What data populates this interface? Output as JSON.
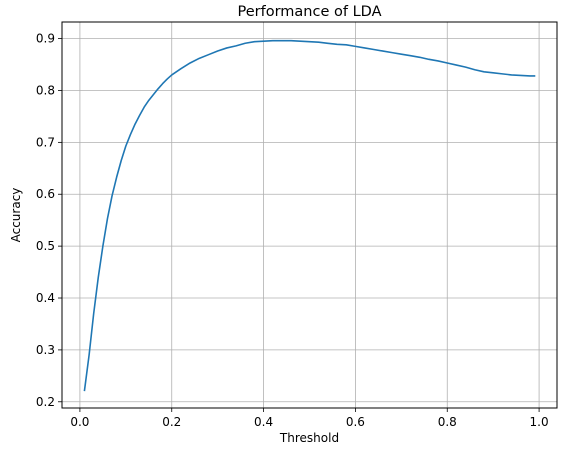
{
  "chart_data": {
    "type": "line",
    "title": "Performance of LDA",
    "xlabel": "Threshold",
    "ylabel": "Accuracy",
    "xlim": [
      -0.039,
      1.039
    ],
    "ylim": [
      0.188,
      0.932
    ],
    "xticks": [
      0.0,
      0.2,
      0.4,
      0.6,
      0.8,
      1.0
    ],
    "xtick_labels": [
      "0.0",
      "0.2",
      "0.4",
      "0.6",
      "0.8",
      "1.0"
    ],
    "yticks": [
      0.2,
      0.3,
      0.4,
      0.5,
      0.6,
      0.7,
      0.8,
      0.9
    ],
    "ytick_labels": [
      "0.2",
      "0.3",
      "0.4",
      "0.5",
      "0.6",
      "0.7",
      "0.8",
      "0.9"
    ],
    "grid": true,
    "series": [
      {
        "color": "#1f77b4",
        "x": [
          0.01,
          0.02,
          0.03,
          0.04,
          0.05,
          0.06,
          0.07,
          0.08,
          0.09,
          0.1,
          0.11,
          0.12,
          0.13,
          0.14,
          0.15,
          0.16,
          0.17,
          0.18,
          0.19,
          0.2,
          0.22,
          0.24,
          0.26,
          0.28,
          0.3,
          0.32,
          0.34,
          0.36,
          0.38,
          0.4,
          0.42,
          0.44,
          0.46,
          0.48,
          0.5,
          0.52,
          0.54,
          0.56,
          0.58,
          0.6,
          0.62,
          0.64,
          0.66,
          0.68,
          0.7,
          0.72,
          0.74,
          0.76,
          0.78,
          0.8,
          0.82,
          0.84,
          0.86,
          0.88,
          0.9,
          0.92,
          0.94,
          0.96,
          0.98,
          0.99
        ],
        "y": [
          0.222,
          0.29,
          0.37,
          0.44,
          0.5,
          0.553,
          0.597,
          0.633,
          0.665,
          0.693,
          0.715,
          0.735,
          0.752,
          0.768,
          0.781,
          0.792,
          0.803,
          0.813,
          0.822,
          0.83,
          0.842,
          0.853,
          0.862,
          0.869,
          0.876,
          0.882,
          0.886,
          0.891,
          0.894,
          0.895,
          0.896,
          0.896,
          0.896,
          0.895,
          0.894,
          0.893,
          0.891,
          0.889,
          0.888,
          0.885,
          0.882,
          0.879,
          0.876,
          0.873,
          0.87,
          0.867,
          0.864,
          0.86,
          0.857,
          0.853,
          0.849,
          0.845,
          0.84,
          0.836,
          0.834,
          0.832,
          0.83,
          0.829,
          0.828,
          0.828
        ]
      }
    ]
  }
}
